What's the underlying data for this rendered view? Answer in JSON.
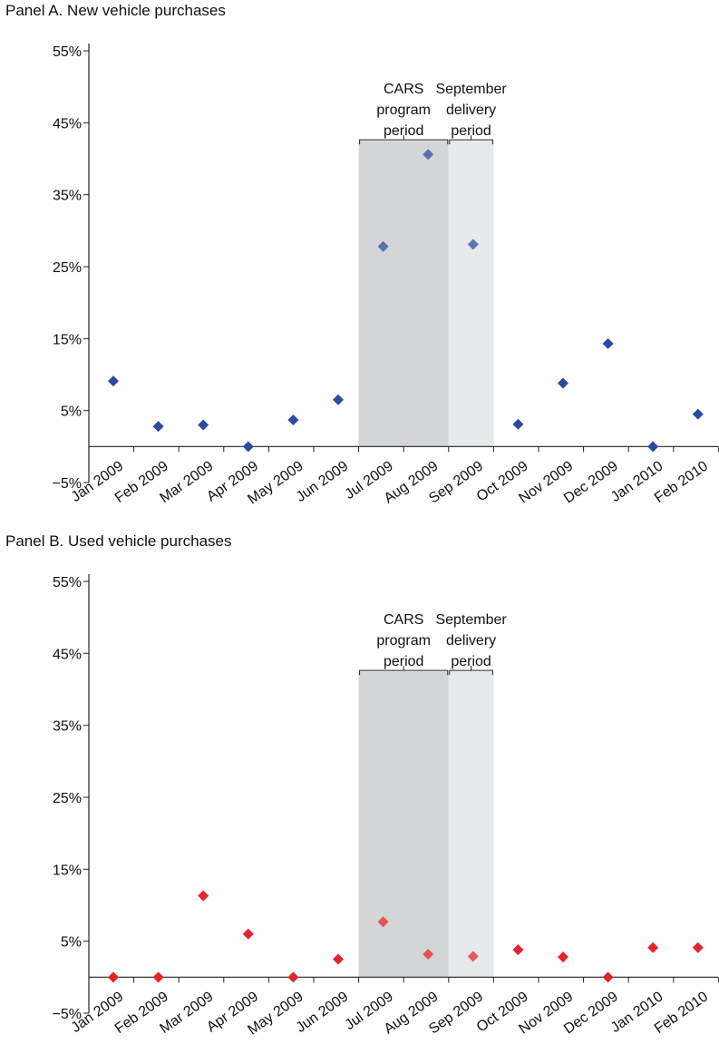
{
  "colors": {
    "panel_a_marker": "#2e4a9e",
    "panel_b_marker": "#e3242b",
    "cars_shade": "#d4d5d7",
    "september_shade": "#e8e9ea"
  },
  "chart_data": [
    {
      "type": "scatter",
      "title": "Panel A. New vehicle purchases",
      "categories": [
        "Jan 2009",
        "Feb 2009",
        "Mar 2009",
        "Apr 2009",
        "May 2009",
        "Jun 2009",
        "Jul 2009",
        "Aug 2009",
        "Sep 2009",
        "Oct 2009",
        "Nov 2009",
        "Dec 2009",
        "Jan 2010",
        "Feb 2010"
      ],
      "values": [
        9.1,
        2.8,
        3.0,
        0.0,
        3.7,
        6.5,
        27.8,
        40.6,
        28.1,
        3.1,
        8.8,
        14.3,
        0.0,
        4.5
      ],
      "y_ticks": [
        "55%",
        "45%",
        "35%",
        "25%",
        "15%",
        "5%",
        "−5%"
      ],
      "ylim": [
        -5,
        55
      ],
      "marker": "diamond",
      "shaded_periods": [
        {
          "label_lines": [
            "CARS",
            "program",
            "period"
          ],
          "start": "Jul 2009",
          "end": "Aug 2009"
        },
        {
          "label_lines": [
            "September",
            "delivery",
            "period"
          ],
          "start": "Sep 2009",
          "end": "Sep 2009"
        }
      ]
    },
    {
      "type": "scatter",
      "title": "Panel B. Used vehicle purchases",
      "categories": [
        "Jan 2009",
        "Feb 2009",
        "Mar 2009",
        "Apr 2009",
        "May 2009",
        "Jun 2009",
        "Jul 2009",
        "Aug 2009",
        "Sep 2009",
        "Oct 2009",
        "Nov 2009",
        "Dec 2009",
        "Jan 2010",
        "Feb 2010"
      ],
      "values": [
        0.0,
        0.0,
        11.3,
        6.0,
        0.0,
        2.5,
        7.7,
        3.2,
        2.9,
        3.8,
        2.8,
        0.0,
        4.1,
        4.1
      ],
      "y_ticks": [
        "55%",
        "45%",
        "35%",
        "25%",
        "15%",
        "5%",
        "−5%"
      ],
      "ylim": [
        -5,
        55
      ],
      "marker": "diamond",
      "shaded_periods": [
        {
          "label_lines": [
            "CARS",
            "program",
            "period"
          ],
          "start": "Jul 2009",
          "end": "Aug 2009"
        },
        {
          "label_lines": [
            "September",
            "delivery",
            "period"
          ],
          "start": "Sep 2009",
          "end": "Sep 2009"
        }
      ]
    }
  ]
}
